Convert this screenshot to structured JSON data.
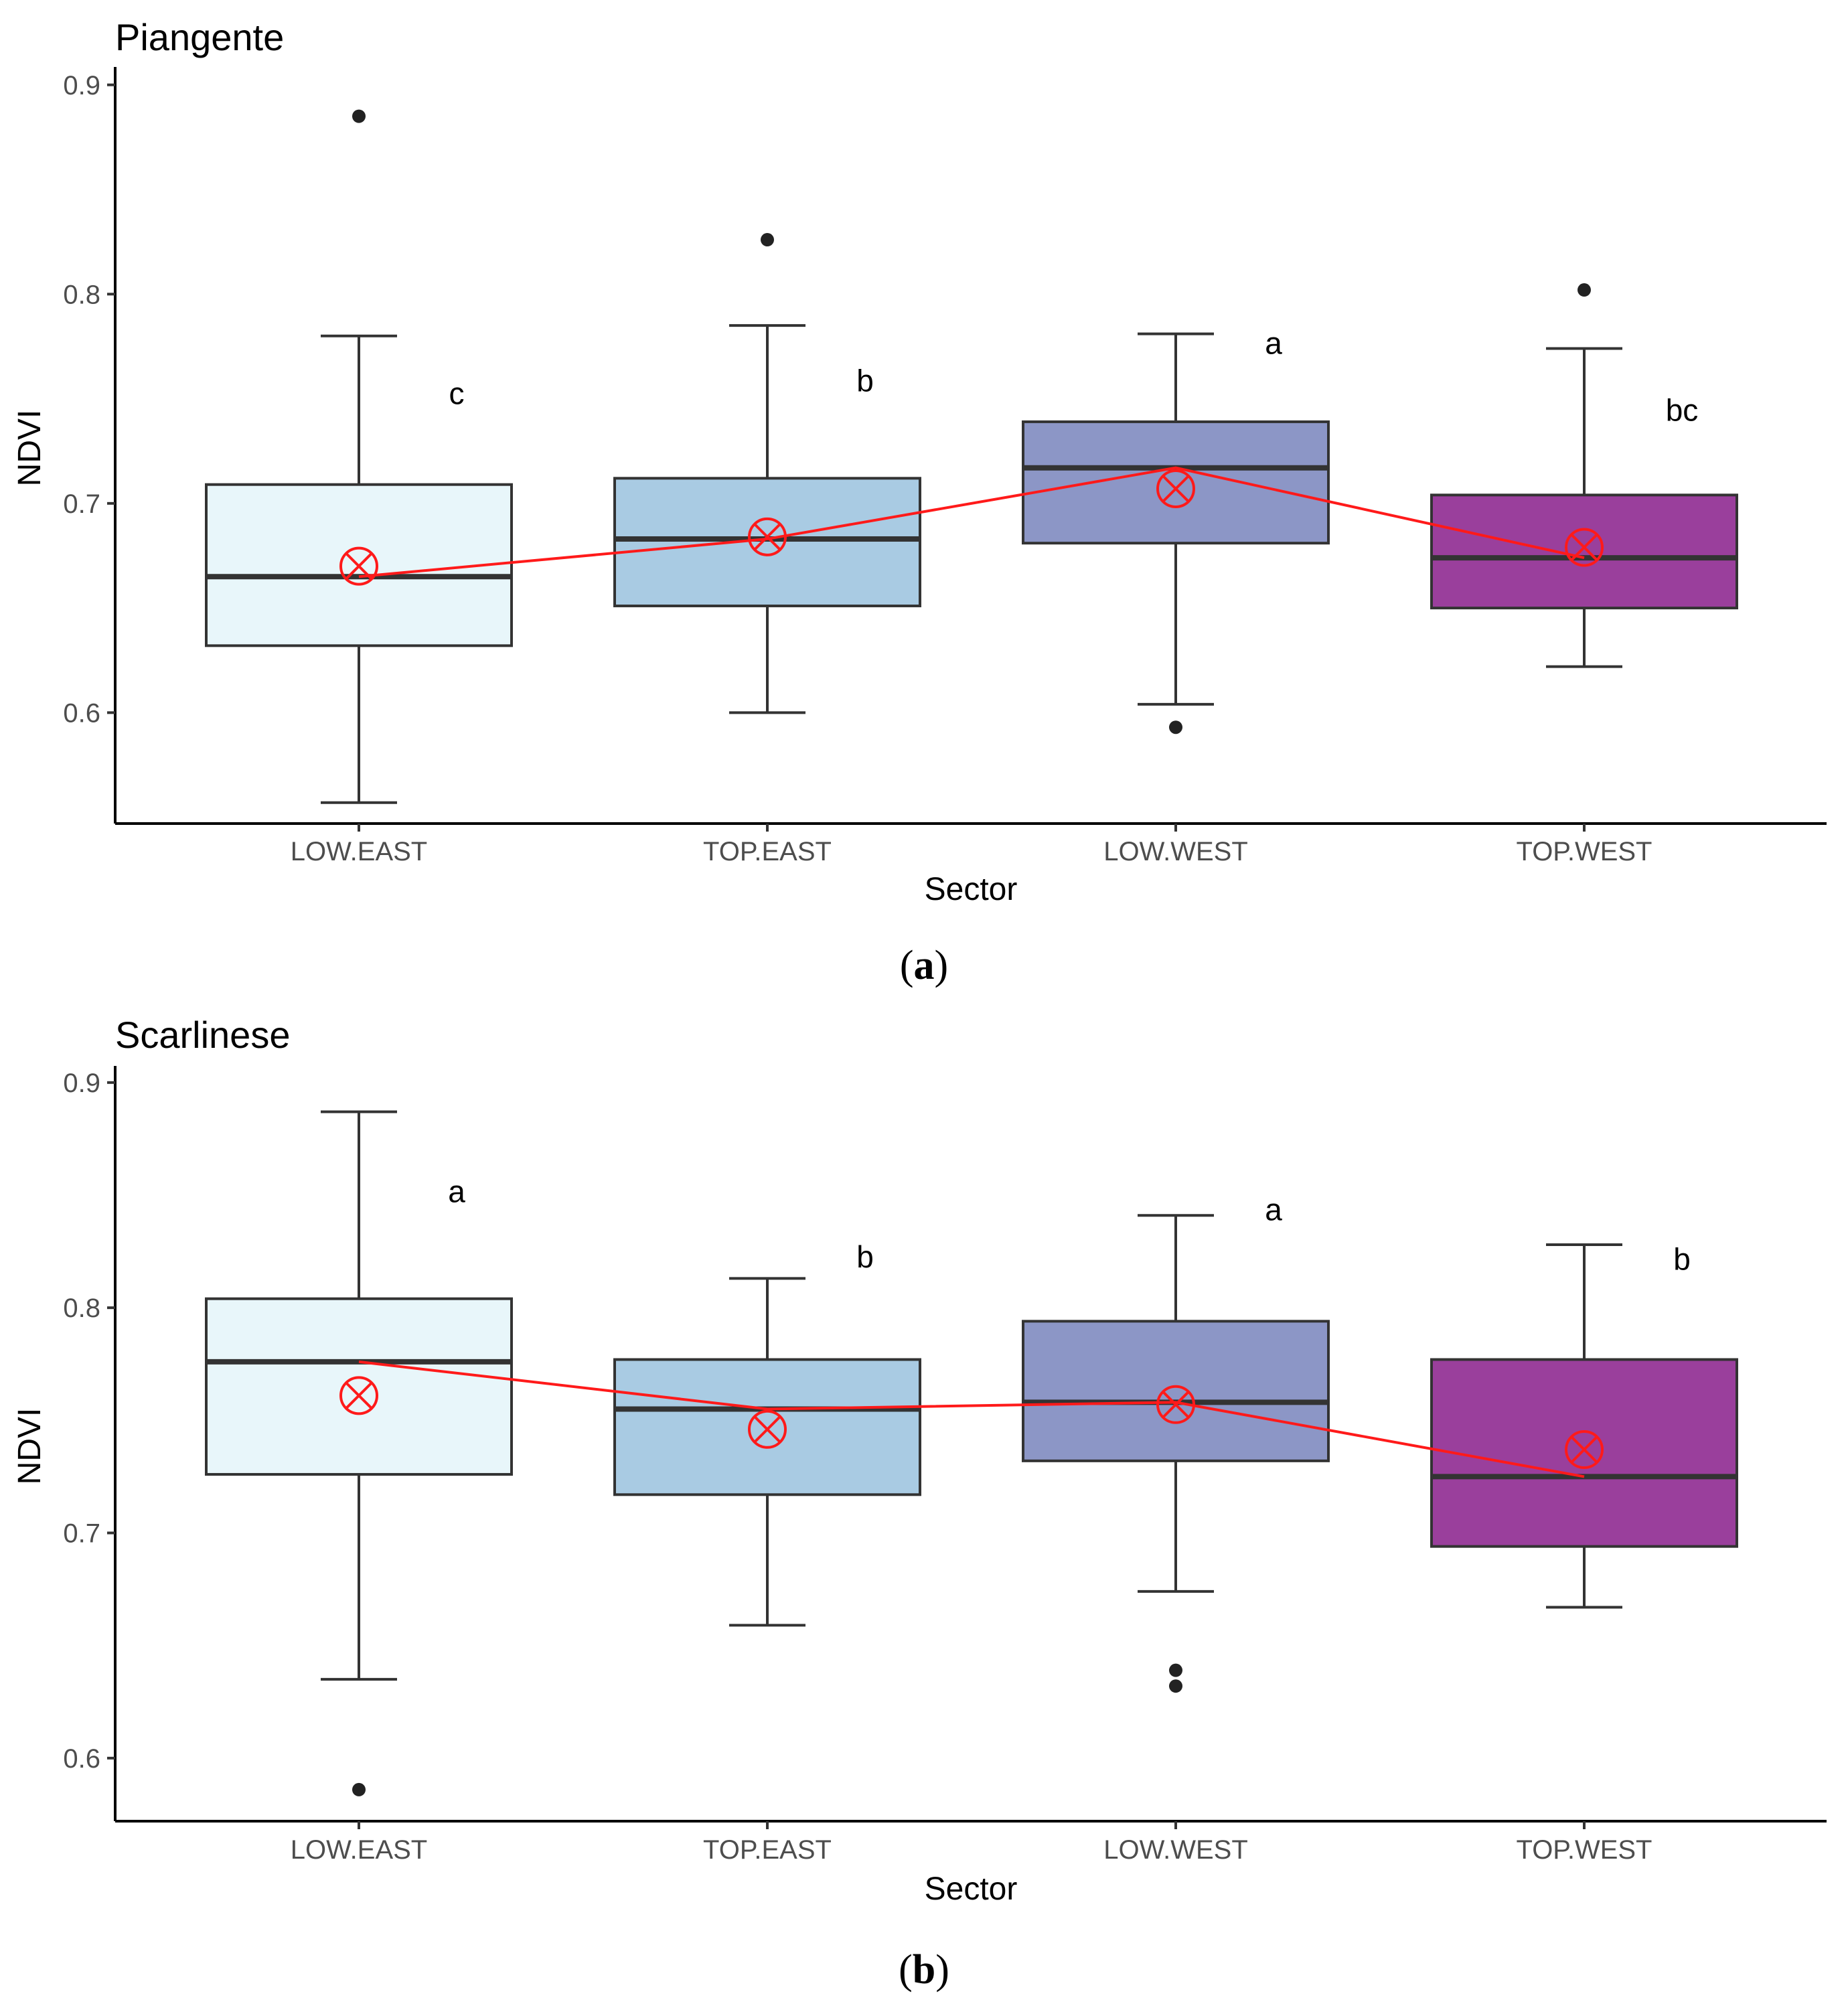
{
  "colors": {
    "LOW.EAST": "#e8f6fa",
    "TOP.EAST": "#a9cbe3",
    "LOW.WEST": "#8c96c6",
    "TOP.WEST": "#9a3f9c",
    "mean_marker": "#ff1a1a",
    "mean_line": "#ff1a1a",
    "box_stroke": "#333333"
  },
  "chart_data": [
    {
      "type": "boxplot",
      "title": "Piangente",
      "caption_letter": "a",
      "xlabel": "Sector",
      "ylabel": "NDVI",
      "ylim": [
        0.547,
        0.906
      ],
      "yticks": [
        0.6,
        0.7,
        0.8,
        0.9
      ],
      "ytick_labels": [
        "0.6",
        "0.7",
        "0.8",
        "0.9"
      ],
      "categories": [
        "LOW.EAST",
        "TOP.EAST",
        "LOW.WEST",
        "TOP.WEST"
      ],
      "boxes": [
        {
          "q1": 0.632,
          "median": 0.665,
          "q3": 0.709,
          "whisker_low": 0.557,
          "whisker_high": 0.78,
          "mean": 0.67,
          "outliers": [
            0.885
          ],
          "letter": "c",
          "letter_y": 0.752
        },
        {
          "q1": 0.651,
          "median": 0.683,
          "q3": 0.712,
          "whisker_low": 0.6,
          "whisker_high": 0.785,
          "mean": 0.684,
          "outliers": [
            0.826
          ],
          "letter": "b",
          "letter_y": 0.758
        },
        {
          "q1": 0.681,
          "median": 0.717,
          "q3": 0.739,
          "whisker_low": 0.604,
          "whisker_high": 0.781,
          "mean": 0.707,
          "outliers": [
            0.593
          ],
          "letter": "a",
          "letter_y": 0.776
        },
        {
          "q1": 0.65,
          "median": 0.674,
          "q3": 0.704,
          "whisker_low": 0.622,
          "whisker_high": 0.774,
          "mean": 0.679,
          "outliers": [
            0.802
          ],
          "letter": "bc",
          "letter_y": 0.744
        }
      ]
    },
    {
      "type": "boxplot",
      "title": "Scarlinese",
      "caption_letter": "b",
      "xlabel": "Sector",
      "ylabel": "NDVI",
      "ylim": [
        0.572,
        0.905
      ],
      "yticks": [
        0.6,
        0.7,
        0.8,
        0.9
      ],
      "ytick_labels": [
        "0.6",
        "0.7",
        "0.8",
        "0.9"
      ],
      "categories": [
        "LOW.EAST",
        "TOP.EAST",
        "LOW.WEST",
        "TOP.WEST"
      ],
      "boxes": [
        {
          "q1": 0.726,
          "median": 0.776,
          "q3": 0.804,
          "whisker_low": 0.635,
          "whisker_high": 0.887,
          "mean": 0.761,
          "outliers": [
            0.586
          ],
          "letter": "a",
          "letter_y": 0.851
        },
        {
          "q1": 0.717,
          "median": 0.755,
          "q3": 0.777,
          "whisker_low": 0.659,
          "whisker_high": 0.813,
          "mean": 0.746,
          "outliers": [],
          "letter": "b",
          "letter_y": 0.822
        },
        {
          "q1": 0.732,
          "median": 0.758,
          "q3": 0.794,
          "whisker_low": 0.674,
          "whisker_high": 0.841,
          "mean": 0.757,
          "outliers": [
            0.639,
            0.632
          ],
          "letter": "a",
          "letter_y": 0.843
        },
        {
          "q1": 0.694,
          "median": 0.725,
          "q3": 0.777,
          "whisker_low": 0.667,
          "whisker_high": 0.828,
          "mean": 0.737,
          "outliers": [],
          "letter": "b",
          "letter_y": 0.821
        }
      ]
    }
  ]
}
